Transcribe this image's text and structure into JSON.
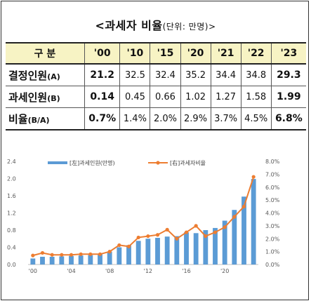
{
  "title": {
    "main": "<과세자 비율",
    "unit": "(단위: 만명)>"
  },
  "table": {
    "header_label": "구 분",
    "years": [
      "'00",
      "'10",
      "'15",
      "'20",
      "'21",
      "'22",
      "'23"
    ],
    "rows": [
      {
        "label": "결정인원",
        "sub": "(A)",
        "values": [
          "21.2",
          "32.5",
          "32.4",
          "35.2",
          "34.4",
          "34.8",
          "29.3"
        ]
      },
      {
        "label": "과세인원",
        "sub": "(B)",
        "values": [
          "0.14",
          "0.45",
          "0.66",
          "1.02",
          "1.27",
          "1.58",
          "1.99"
        ]
      },
      {
        "label": "비율",
        "sub": "(B/A)",
        "values": [
          "0.7%",
          "1.4%",
          "2.0%",
          "2.9%",
          "3.7%",
          "4.5%",
          "6.8%"
        ]
      }
    ]
  },
  "chart_data": {
    "type": "bar",
    "x": [
      2000,
      2001,
      2002,
      2003,
      2004,
      2005,
      2006,
      2007,
      2008,
      2009,
      2010,
      2011,
      2012,
      2013,
      2014,
      2015,
      2016,
      2017,
      2018,
      2019,
      2020,
      2021,
      2022,
      2023
    ],
    "x_tick_labels": [
      "'00",
      "'04",
      "'08",
      "'12",
      "'16",
      "'20"
    ],
    "x_tick_years": [
      2000,
      2004,
      2008,
      2012,
      2016,
      2020
    ],
    "series": [
      {
        "name": "[左]과세인원(만명)",
        "chart": "bar",
        "axis": "left",
        "color": "#5b9bd5",
        "values": [
          0.14,
          0.18,
          0.18,
          0.19,
          0.2,
          0.21,
          0.22,
          0.25,
          0.3,
          0.4,
          0.45,
          0.55,
          0.6,
          0.62,
          0.65,
          0.66,
          0.75,
          0.73,
          0.8,
          0.85,
          1.02,
          1.27,
          1.58,
          1.99
        ]
      },
      {
        "name": "[右]과세자비율",
        "chart": "line",
        "axis": "right",
        "color": "#ed7d31",
        "values": [
          0.7,
          0.9,
          0.75,
          0.75,
          0.75,
          0.8,
          0.8,
          0.8,
          1.0,
          1.5,
          1.4,
          2.1,
          2.2,
          2.3,
          2.7,
          2.0,
          2.5,
          3.0,
          2.2,
          2.5,
          2.9,
          3.7,
          4.5,
          6.8
        ]
      }
    ],
    "y_left": {
      "range": [
        0,
        2.4
      ],
      "ticks": [
        "0.0",
        "0.4",
        "0.8",
        "1.2",
        "1.6",
        "2.0",
        "2.4"
      ]
    },
    "y_right": {
      "range": [
        0,
        8
      ],
      "ticks": [
        "0.0%",
        "1.0%",
        "2.0%",
        "3.0%",
        "4.0%",
        "5.0%",
        "6.0%",
        "7.0%",
        "8.0%"
      ]
    },
    "grid": false,
    "legend": "top-center"
  }
}
